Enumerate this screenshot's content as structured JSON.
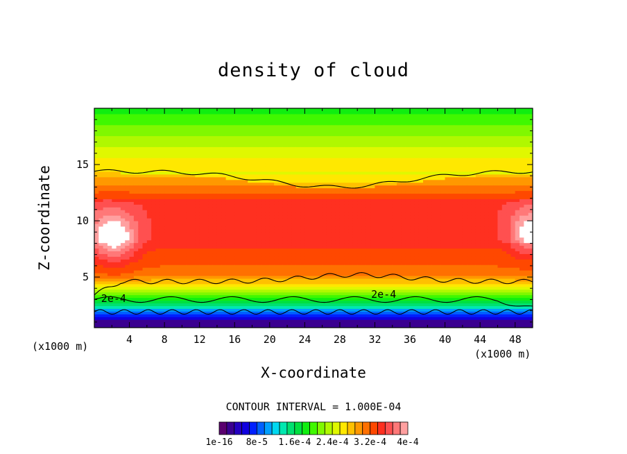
{
  "chart_data": {
    "type": "heatmap",
    "title": "density of cloud",
    "xlabel": "X-coordinate",
    "ylabel": "Z-coordinate",
    "x_unit": "(x1000 m)",
    "z_unit": "(x1000 m)",
    "xlim": [
      0,
      50
    ],
    "ylim": [
      0.5,
      20
    ],
    "xticks": [
      "4",
      "8",
      "12",
      "16",
      "20",
      "24",
      "28",
      "32",
      "36",
      "40",
      "44",
      "48"
    ],
    "yticks": [
      "5",
      "10",
      "15"
    ],
    "xtick_values": [
      4,
      8,
      12,
      16,
      20,
      24,
      28,
      32,
      36,
      40,
      44,
      48
    ],
    "ytick_values": [
      5,
      10,
      15
    ],
    "contour_interval": "CONTOUR INTERVAL = 1.000E-04",
    "contour_labels": [
      {
        "text": "2e-4",
        "x": 2.2,
        "z": 3.0
      },
      {
        "text": "2e-4",
        "x": 33.0,
        "z": 3.4
      }
    ],
    "colorbar": {
      "min": 1e-16,
      "max": 0.0004,
      "colors": [
        "#5a006e",
        "#3a0090",
        "#2400c0",
        "#1000e0",
        "#0020ff",
        "#0060ff",
        "#00a0ff",
        "#00d8f0",
        "#00e8b0",
        "#00e070",
        "#00e040",
        "#10ee10",
        "#40f800",
        "#80f800",
        "#b0f800",
        "#e0f800",
        "#ffe800",
        "#ffc000",
        "#ff9800",
        "#ff7000",
        "#ff4800",
        "#ff3020",
        "#ff5050",
        "#ff7878",
        "#ffa0a0"
      ],
      "tick_labels": [
        "1e-16",
        "8e-5",
        "1.6e-4",
        "2.4e-4",
        "3.2e-4",
        "4e-4"
      ]
    }
  }
}
